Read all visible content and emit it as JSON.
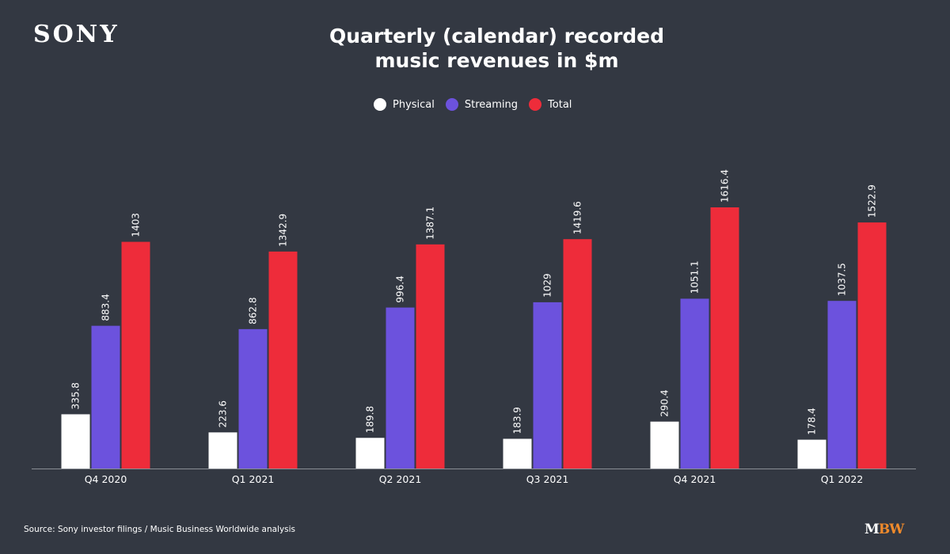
{
  "brand": {
    "logo_text": "SONY",
    "mbw_prefix": "M",
    "mbw_suffix": "BW",
    "mbw_accent_color": "#f08a2b"
  },
  "source_text": "Source: Sony investor filings / Music Business Worldwide analysis",
  "colors": {
    "background": "#333842",
    "axis": "#8a8e96"
  },
  "chart_data": {
    "type": "bar",
    "title_lines": [
      "Quarterly (calendar) recorded",
      "music revenues in $m"
    ],
    "categories": [
      "Q4 2020",
      "Q1 2021",
      "Q2 2021",
      "Q3 2021",
      "Q4 2021",
      "Q1 2022"
    ],
    "series": [
      {
        "name": "Physical",
        "color": "#ffffff",
        "values": [
          335.8,
          223.6,
          189.8,
          183.9,
          290.4,
          178.4
        ],
        "labels": [
          "335.8",
          "223.6",
          "189.8",
          "183.9",
          "290.4",
          "178.4"
        ]
      },
      {
        "name": "Streaming",
        "color": "#6c52dd",
        "values": [
          883.4,
          862.8,
          996.4,
          1029,
          1051.1,
          1037.5
        ],
        "labels": [
          "883.4",
          "862.8",
          "996.4",
          "1029",
          "1051.1",
          "1037.5"
        ]
      },
      {
        "name": "Total",
        "color": "#ee2c3a",
        "values": [
          1403,
          1342.9,
          1387.1,
          1419.6,
          1616.4,
          1522.9
        ],
        "labels": [
          "1403",
          "1342.9",
          "1387.1",
          "1419.6",
          "1616.4",
          "1522.9"
        ]
      }
    ],
    "ylim": [
      0,
      1616.4
    ],
    "legend_position": "top-center",
    "grid": false,
    "data_label_orientation": "vertical"
  }
}
